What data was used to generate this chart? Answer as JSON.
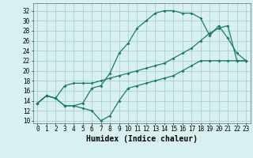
{
  "line1_x": [
    0,
    1,
    2,
    3,
    4,
    5,
    6,
    7,
    8,
    9,
    10,
    11,
    12,
    13,
    14,
    15,
    16,
    17,
    18,
    19,
    20,
    21,
    22,
    23
  ],
  "line1_y": [
    13.5,
    15.0,
    14.5,
    13.0,
    13.0,
    13.5,
    16.5,
    17.0,
    19.5,
    23.5,
    25.5,
    28.5,
    30.0,
    31.5,
    32.0,
    32.0,
    31.5,
    31.5,
    30.5,
    27.0,
    29.0,
    26.5,
    23.5,
    22.0
  ],
  "line2_x": [
    0,
    1,
    2,
    3,
    4,
    5,
    6,
    7,
    8,
    9,
    10,
    11,
    12,
    13,
    14,
    15,
    16,
    17,
    18,
    19,
    20,
    21,
    22,
    23
  ],
  "line2_y": [
    13.5,
    15.0,
    14.5,
    17.0,
    17.5,
    17.5,
    17.5,
    18.0,
    18.5,
    19.0,
    19.5,
    20.0,
    20.5,
    21.0,
    21.5,
    22.5,
    23.5,
    24.5,
    26.0,
    27.5,
    28.5,
    29.0,
    22.0,
    22.0
  ],
  "line3_x": [
    0,
    1,
    2,
    3,
    4,
    5,
    6,
    7,
    8,
    9,
    10,
    11,
    12,
    13,
    14,
    15,
    16,
    17,
    18,
    19,
    20,
    21,
    22,
    23
  ],
  "line3_y": [
    13.5,
    15.0,
    14.5,
    13.0,
    13.0,
    12.5,
    12.0,
    10.0,
    11.0,
    14.0,
    16.5,
    17.0,
    17.5,
    18.0,
    18.5,
    19.0,
    20.0,
    21.0,
    22.0,
    22.0,
    22.0,
    22.0,
    22.0,
    22.0
  ],
  "line_color": "#1a7a6a",
  "bg_color": "#d8f0f0",
  "grid_color": "#a0c8c8",
  "xlabel": "Humidex (Indice chaleur)",
  "xlim": [
    -0.5,
    23.5
  ],
  "ylim": [
    9.5,
    33.5
  ],
  "xticks": [
    0,
    1,
    2,
    3,
    4,
    5,
    6,
    7,
    8,
    9,
    10,
    11,
    12,
    13,
    14,
    15,
    16,
    17,
    18,
    19,
    20,
    21,
    22,
    23
  ],
  "yticks": [
    10,
    12,
    14,
    16,
    18,
    20,
    22,
    24,
    26,
    28,
    30,
    32
  ],
  "marker_size": 2.0,
  "line_width": 0.9,
  "xlabel_fontsize": 7,
  "tick_fontsize": 5.5
}
